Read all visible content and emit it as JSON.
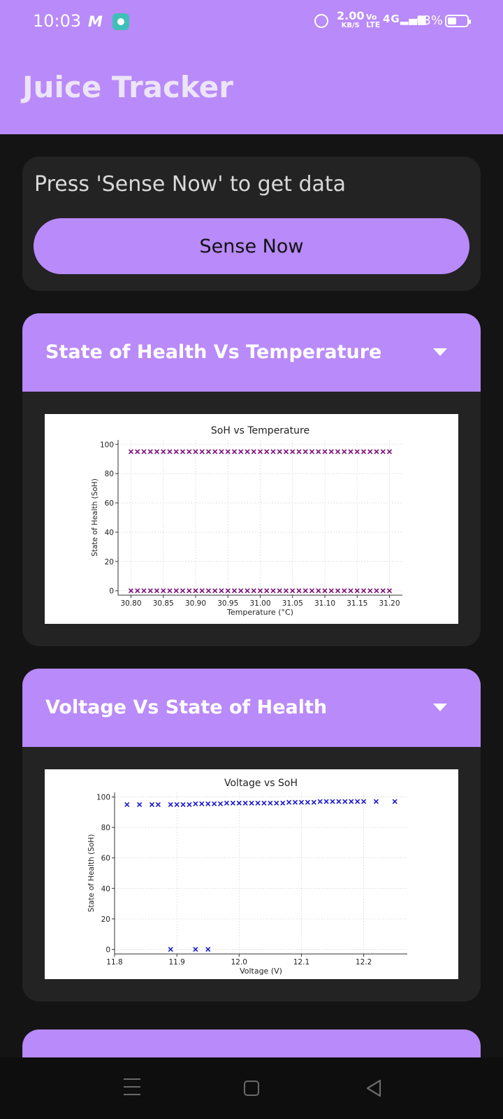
{
  "status_bar": {
    "time": "10:03",
    "net_speed_value": "2.00",
    "net_speed_unit": "KB/S",
    "volte_line1": "Vo",
    "volte_line2": "LTE",
    "signal": "⁴⁴ᴳ",
    "battery": "43%"
  },
  "app": {
    "title": "Juice Tracker",
    "accent": "#b98af9"
  },
  "sense": {
    "status_text": "Press 'Sense Now' to get data",
    "button_label": "Sense Now"
  },
  "sections": [
    {
      "title": "State of Health Vs Temperature",
      "icon": "chevron-down-icon"
    },
    {
      "title": "Voltage Vs State of Health",
      "icon": "chevron-down-icon"
    }
  ],
  "chart_data": [
    {
      "type": "scatter",
      "title": "SoH vs Temperature",
      "xlabel": "Temperature (°C)",
      "ylabel": "State of Health (SoH)",
      "xlim": [
        30.78,
        31.22
      ],
      "ylim": [
        -3,
        103
      ],
      "xticks": [
        30.8,
        30.85,
        30.9,
        30.95,
        31.0,
        31.05,
        31.1,
        31.15,
        31.2
      ],
      "xtick_labels": [
        "30.80",
        "30.85",
        "30.90",
        "30.95",
        "31.00",
        "31.05",
        "31.10",
        "31.15",
        "31.20"
      ],
      "yticks": [
        0,
        20,
        40,
        60,
        80,
        100
      ],
      "grid": true,
      "marker": "x",
      "color": "#7b0f7b",
      "series": [
        {
          "x": [
            30.8,
            30.81,
            30.82,
            30.83,
            30.84,
            30.85,
            30.86,
            30.87,
            30.88,
            30.89,
            30.9,
            30.91,
            30.92,
            30.93,
            30.94,
            30.95,
            30.96,
            30.97,
            30.98,
            30.99,
            31.0,
            31.01,
            31.02,
            31.03,
            31.04,
            31.05,
            31.06,
            31.07,
            31.08,
            31.09,
            31.1,
            31.11,
            31.12,
            31.13,
            31.14,
            31.15,
            31.16,
            31.17,
            31.18,
            31.19,
            31.2
          ],
          "y": [
            95,
            95,
            95,
            95,
            95,
            95,
            95,
            95,
            95,
            95,
            95,
            95,
            95,
            95,
            95,
            95,
            95,
            95,
            95,
            95,
            95,
            95,
            95,
            95,
            95,
            95,
            95,
            95,
            95,
            95,
            95,
            95,
            95,
            95,
            95,
            95,
            95,
            95,
            95,
            95,
            95
          ]
        },
        {
          "x": [
            30.8,
            30.81,
            30.82,
            30.83,
            30.84,
            30.85,
            30.86,
            30.87,
            30.88,
            30.89,
            30.9,
            30.91,
            30.92,
            30.93,
            30.94,
            30.95,
            30.96,
            30.97,
            30.98,
            30.99,
            31.0,
            31.01,
            31.02,
            31.03,
            31.04,
            31.05,
            31.06,
            31.07,
            31.08,
            31.09,
            31.1,
            31.11,
            31.12,
            31.13,
            31.14,
            31.15,
            31.16,
            31.17,
            31.18,
            31.19,
            31.2
          ],
          "y": [
            0,
            0,
            0,
            0,
            0,
            0,
            0,
            0,
            0,
            0,
            0,
            0,
            0,
            0,
            0,
            0,
            0,
            0,
            0,
            0,
            0,
            0,
            0,
            0,
            0,
            0,
            0,
            0,
            0,
            0,
            0,
            0,
            0,
            0,
            0,
            0,
            0,
            0,
            0,
            0,
            0
          ]
        }
      ]
    },
    {
      "type": "scatter",
      "title": "Voltage vs SoH",
      "xlabel": "Voltage (V)",
      "ylabel": "State of Health (SoH)",
      "xlim": [
        11.8,
        12.27
      ],
      "ylim": [
        -3,
        103
      ],
      "xticks": [
        11.8,
        11.9,
        12.0,
        12.1,
        12.2
      ],
      "xtick_labels": [
        "11.8",
        "11.9",
        "12.0",
        "12.1",
        "12.2"
      ],
      "yticks": [
        0,
        20,
        40,
        60,
        80,
        100
      ],
      "grid": true,
      "marker": "x",
      "color": "#1a1acc",
      "series": [
        {
          "x": [
            11.82,
            11.84,
            11.86,
            11.87,
            11.89,
            11.9,
            11.91,
            11.92,
            11.93,
            11.94,
            11.95,
            11.96,
            11.97,
            11.98,
            11.99,
            12.0,
            12.01,
            12.02,
            12.03,
            12.04,
            12.05,
            12.06,
            12.07,
            12.08,
            12.09,
            12.1,
            12.11,
            12.12,
            12.13,
            12.14,
            12.15,
            12.16,
            12.17,
            12.18,
            12.19,
            12.2,
            12.22,
            12.25
          ],
          "y": [
            95,
            95,
            95,
            95,
            95,
            95,
            95,
            95,
            95.5,
            95.5,
            95.5,
            95.5,
            95.5,
            96,
            96,
            96,
            96,
            96,
            96,
            96,
            96,
            96,
            96,
            96.5,
            96.5,
            96.5,
            96.5,
            96.5,
            97,
            97,
            97,
            97,
            97,
            97,
            97,
            97,
            97,
            97
          ]
        },
        {
          "x": [
            11.89,
            11.93,
            11.95
          ],
          "y": [
            0,
            0,
            0
          ]
        }
      ]
    }
  ]
}
